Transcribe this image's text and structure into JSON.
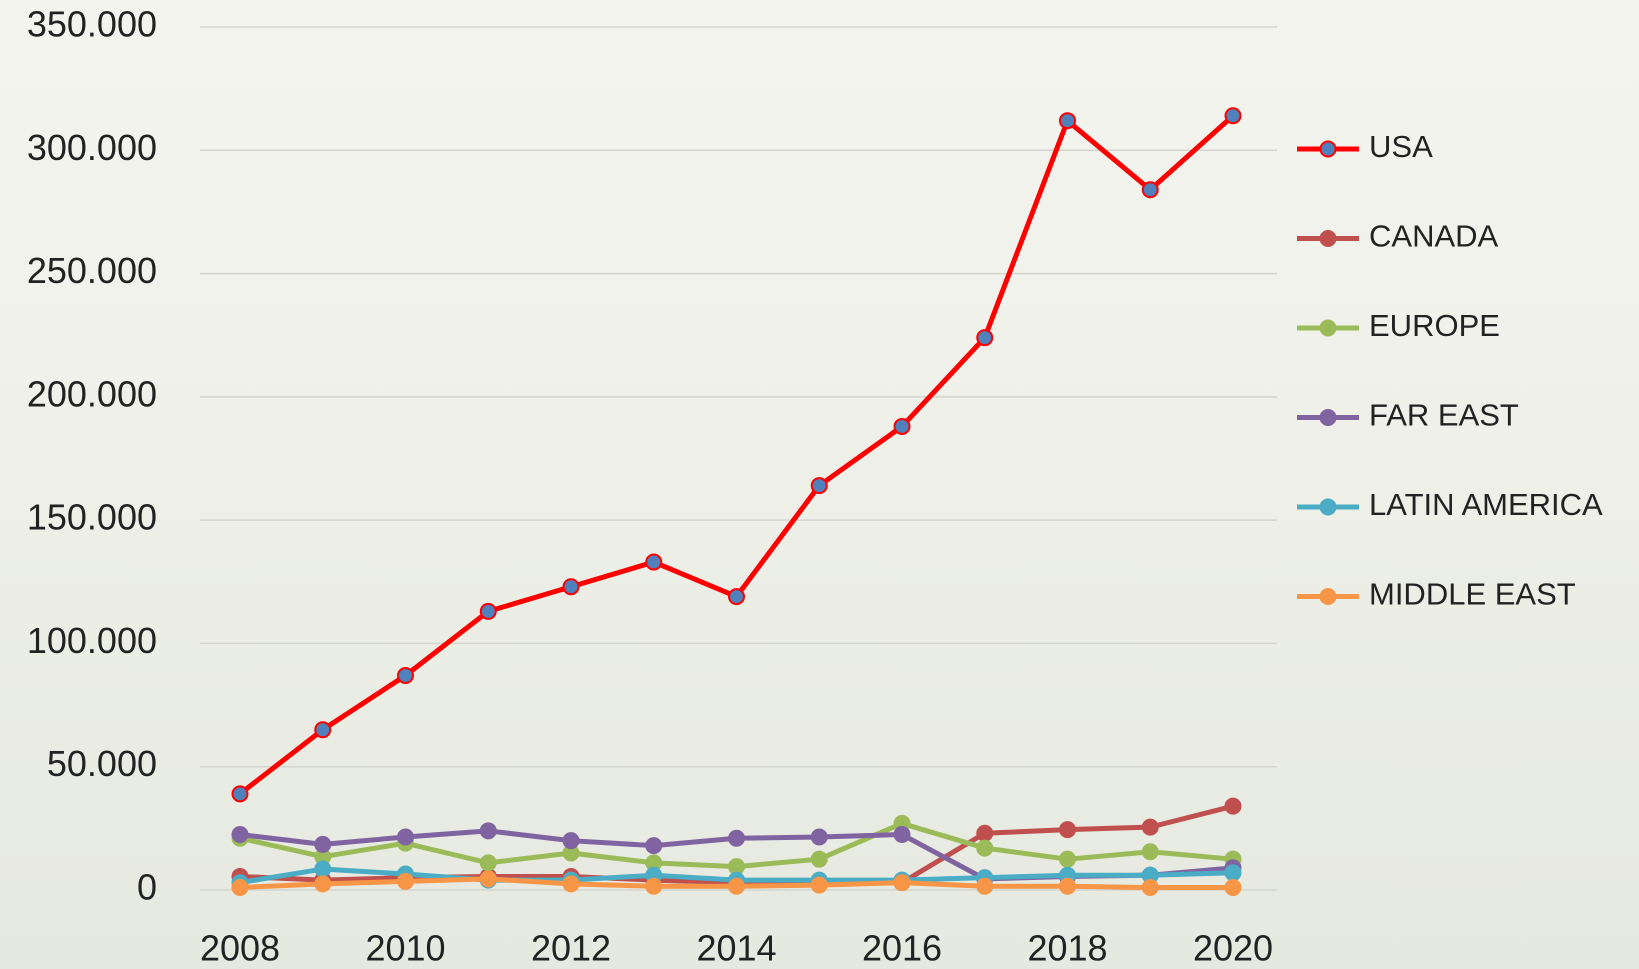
{
  "chart_data": {
    "type": "line",
    "x": [
      2008,
      2009,
      2010,
      2011,
      2012,
      2013,
      2014,
      2015,
      2016,
      2017,
      2018,
      2019,
      2020
    ],
    "xlim": [
      2008,
      2020
    ],
    "xticks": [
      2008,
      2010,
      2012,
      2014,
      2016,
      2018,
      2020
    ],
    "ylim": [
      0,
      350000
    ],
    "yticks": [
      0,
      {
        "value": 50000,
        "label": "50.000"
      },
      {
        "value": 100000,
        "label": "100.000"
      },
      {
        "value": 150000,
        "label": "150.000"
      },
      {
        "value": 200000,
        "label": "200.000"
      },
      {
        "value": 250000,
        "label": "250.000"
      },
      {
        "value": 300000,
        "label": "300.000"
      },
      {
        "value": 350000,
        "label": "350.000"
      }
    ],
    "grid": true,
    "legend": "right",
    "series": [
      {
        "name": "USA",
        "color": "#ff0000",
        "marker_color": "#4f81bd",
        "values": [
          39000,
          65000,
          87000,
          113000,
          123000,
          133000,
          119000,
          164000,
          188000,
          224000,
          312000,
          284000,
          314000
        ]
      },
      {
        "name": "CANADA",
        "color": "#c0504d",
        "values": [
          5500,
          4000,
          5000,
          5500,
          5500,
          4000,
          3000,
          2500,
          3000,
          23000,
          24500,
          25500,
          34000
        ]
      },
      {
        "name": "EUROPE",
        "color": "#9bbb59",
        "values": [
          21000,
          13500,
          19000,
          11000,
          15000,
          11000,
          9500,
          12500,
          27000,
          17000,
          12500,
          15500,
          12500
        ]
      },
      {
        "name": "FAR EAST",
        "color": "#8064a2",
        "values": [
          22500,
          18500,
          21500,
          24000,
          20000,
          18000,
          21000,
          21500,
          22500,
          4500,
          5500,
          6000,
          9000
        ]
      },
      {
        "name": "LATIN AMERICA",
        "color": "#4bacc6",
        "values": [
          3000,
          8500,
          6500,
          4000,
          4000,
          6000,
          4000,
          4000,
          4000,
          5000,
          6000,
          6000,
          7000
        ]
      },
      {
        "name": "MIDDLE EAST",
        "color": "#f79646",
        "values": [
          1000,
          2500,
          3500,
          4500,
          2500,
          1500,
          1500,
          2000,
          3000,
          1500,
          1500,
          1000,
          1000
        ]
      }
    ]
  }
}
